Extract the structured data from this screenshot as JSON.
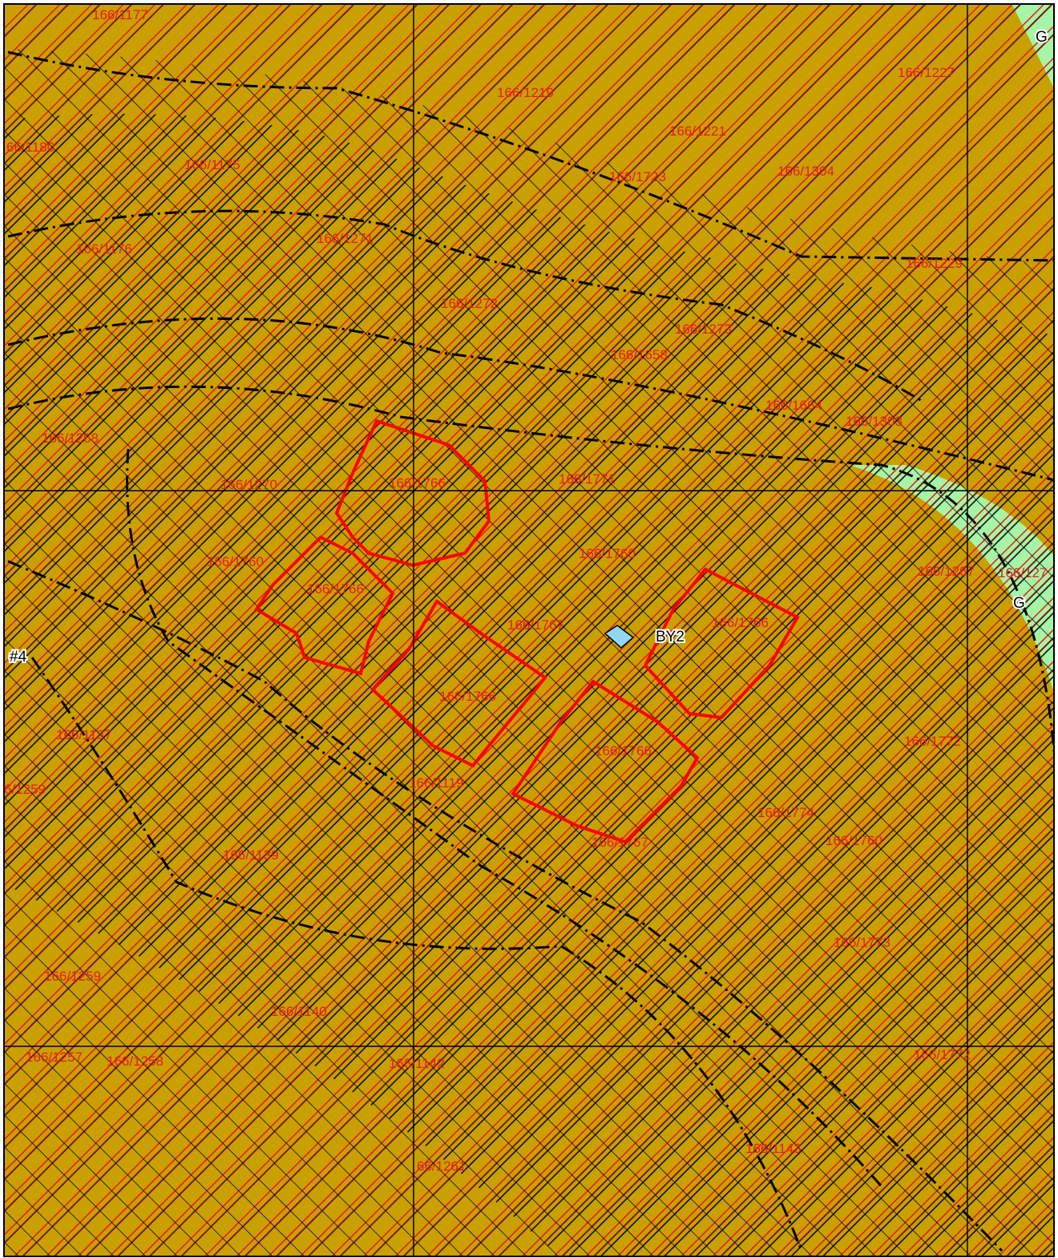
{
  "parcel_labels": [
    "166/1177",
    "166/1219",
    "166/1227",
    "66/1180",
    "166/1175",
    "166/1221",
    "166/1723",
    "166/1304",
    "166/1176",
    "166/1271",
    "166/1229",
    "166/1272",
    "166/1273",
    "166/1658",
    "166/1664",
    "166/1303",
    "166/1268",
    "166/1270",
    "166/1766",
    "166/1771",
    "166/1760",
    "166/1760",
    "166/1766",
    "166/1767",
    "166/1766",
    "166/1267",
    "166/127",
    "166/1766",
    "166/1766",
    "166/1137",
    "166/1772",
    "6/1259",
    "166/1119",
    "166/1774",
    "166/1767",
    "166/1760",
    "166/1139",
    "166/1773",
    "166/1259",
    "166/1140",
    "166/1257",
    "166/1258",
    "166/1142",
    "166/1772",
    "66/1261",
    "166/1143"
  ],
  "feature_labels": [
    "G",
    "G",
    "BY2",
    "#4"
  ]
}
